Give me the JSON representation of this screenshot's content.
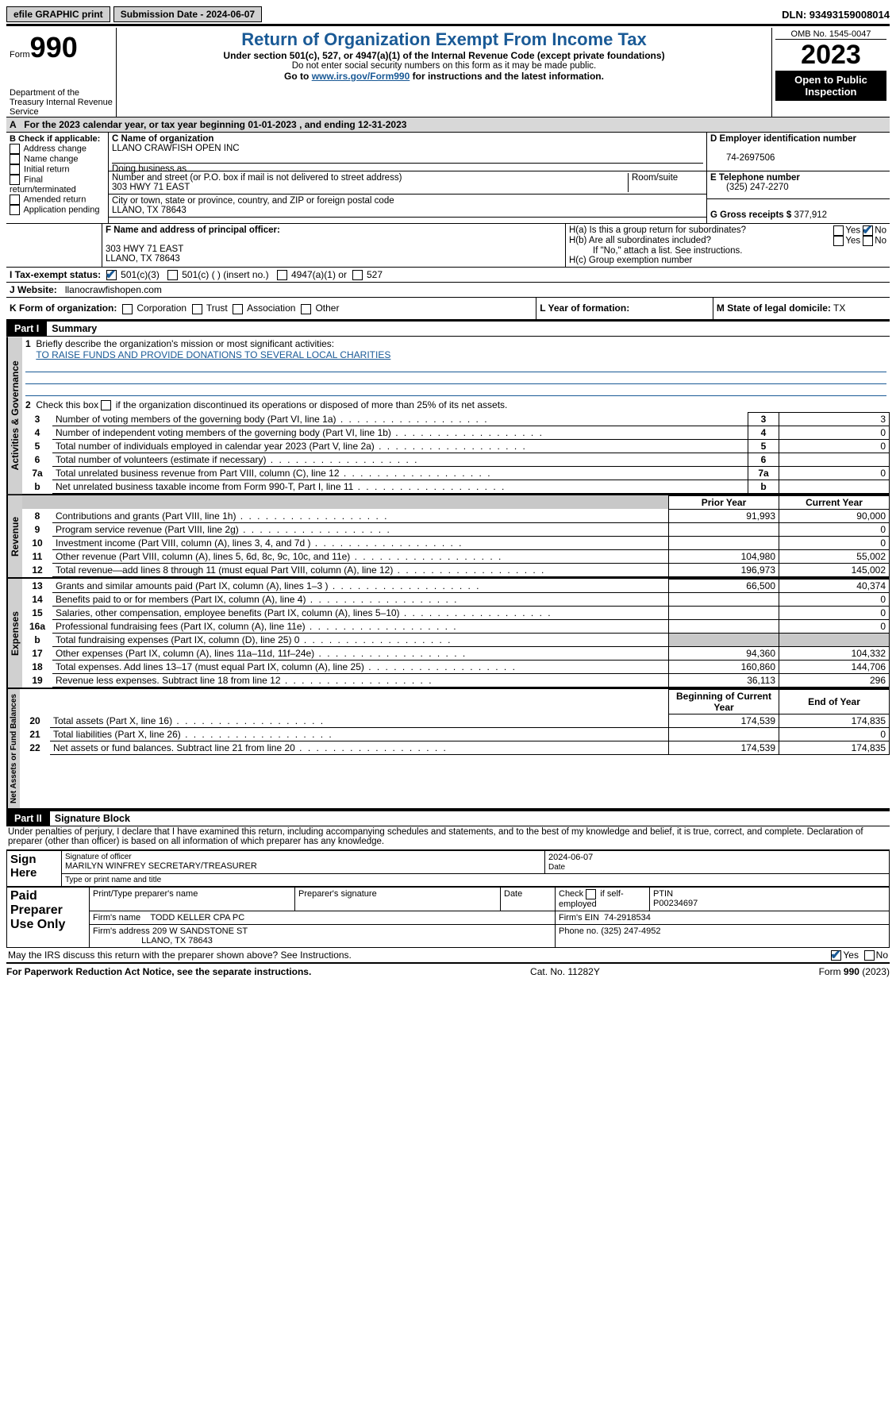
{
  "topbar": {
    "efile": "efile GRAPHIC print",
    "submission_label": "Submission Date - 2024-06-07",
    "dln": "DLN: 93493159008014"
  },
  "header": {
    "form_word": "Form",
    "form_no": "990",
    "dept": "Department of the Treasury\nInternal Revenue Service",
    "title": "Return of Organization Exempt From Income Tax",
    "sub": "Under section 501(c), 527, or 4947(a)(1) of the Internal Revenue Code (except private foundations)",
    "note1": "Do not enter social security numbers on this form as it may be made public.",
    "note2": "Go to ",
    "link": "www.irs.gov/Form990",
    "note3": " for instructions and the latest information.",
    "omb": "OMB No. 1545-0047",
    "year": "2023",
    "inspect": "Open to Public Inspection"
  },
  "period": "For the 2023 calendar year, or tax year beginning 01-01-2023   , and ending 12-31-2023",
  "boxB": {
    "label": "B Check if applicable:",
    "items": [
      "Address change",
      "Name change",
      "Initial return",
      "Final return/terminated",
      "Amended return",
      "Application pending"
    ]
  },
  "boxC": {
    "name_lbl": "C Name of organization",
    "name": "LLANO CRAWFISH OPEN INC",
    "dba_lbl": "Doing business as",
    "street_lbl": "Number and street (or P.O. box if mail is not delivered to street address)",
    "room_lbl": "Room/suite",
    "street": "303 HWY 71 EAST",
    "city_lbl": "City or town, state or province, country, and ZIP or foreign postal code",
    "city": "LLANO, TX  78643"
  },
  "boxD": {
    "lbl": "D Employer identification number",
    "val": "74-2697506"
  },
  "boxE": {
    "lbl": "E Telephone number",
    "val": "(325) 247-2270"
  },
  "boxG": {
    "lbl": "G Gross receipts $",
    "val": "377,912"
  },
  "boxF": {
    "lbl": "F  Name and address of principal officer:",
    "l1": "303 HWY 71 EAST",
    "l2": "LLANO, TX  78643"
  },
  "boxH": {
    "a": "H(a)  Is this a group return for subordinates?",
    "b": "H(b)  Are all subordinates included?",
    "note": "If \"No,\" attach a list. See instructions.",
    "c": "H(c)  Group exemption number"
  },
  "rowI": {
    "lbl": "I   Tax-exempt status:",
    "o1": "501(c)(3)",
    "o2": "501(c) (  ) (insert no.)",
    "o3": "4947(a)(1) or",
    "o4": "527"
  },
  "rowJ": {
    "lbl": "J   Website:",
    "val": "llanocrawfishopen.com"
  },
  "rowK": {
    "lbl": "K Form of organization:",
    "opts": [
      "Corporation",
      "Trust",
      "Association",
      "Other"
    ]
  },
  "rowL": {
    "lbl": "L Year of formation:"
  },
  "rowM": {
    "lbl": "M State of legal domicile:",
    "val": "TX"
  },
  "yes": "Yes",
  "no": "No",
  "part1": {
    "hdr": "Part I",
    "title": "Summary",
    "l1": "Briefly describe the organization's mission or most significant activities:",
    "mission": "TO RAISE FUNDS AND PROVIDE DONATIONS TO SEVERAL LOCAL CHARITIES",
    "l2": "Check this box          if the organization discontinued its operations or disposed of more than 25% of its net assets.",
    "rows_gov": [
      {
        "n": "3",
        "t": "Number of voting members of the governing body (Part VI, line 1a)",
        "v": "3"
      },
      {
        "n": "4",
        "t": "Number of independent voting members of the governing body (Part VI, line 1b)",
        "v": "0"
      },
      {
        "n": "5",
        "t": "Total number of individuals employed in calendar year 2023 (Part V, line 2a)",
        "v": "0"
      },
      {
        "n": "6",
        "t": "Total number of volunteers (estimate if necessary)",
        "v": ""
      },
      {
        "n": "7a",
        "t": "Total unrelated business revenue from Part VIII, column (C), line 12",
        "v": "0"
      },
      {
        "n": "b",
        "t": "Net unrelated business taxable income from Form 990-T, Part I, line 11",
        "v": ""
      }
    ],
    "col_prior": "Prior Year",
    "col_curr": "Current Year",
    "rows_rev": [
      {
        "n": "8",
        "t": "Contributions and grants (Part VIII, line 1h)",
        "p": "91,993",
        "c": "90,000"
      },
      {
        "n": "9",
        "t": "Program service revenue (Part VIII, line 2g)",
        "p": "",
        "c": "0"
      },
      {
        "n": "10",
        "t": "Investment income (Part VIII, column (A), lines 3, 4, and 7d )",
        "p": "",
        "c": "0"
      },
      {
        "n": "11",
        "t": "Other revenue (Part VIII, column (A), lines 5, 6d, 8c, 9c, 10c, and 11e)",
        "p": "104,980",
        "c": "55,002"
      },
      {
        "n": "12",
        "t": "Total revenue—add lines 8 through 11 (must equal Part VIII, column (A), line 12)",
        "p": "196,973",
        "c": "145,002"
      }
    ],
    "rows_exp": [
      {
        "n": "13",
        "t": "Grants and similar amounts paid (Part IX, column (A), lines 1–3 )",
        "p": "66,500",
        "c": "40,374"
      },
      {
        "n": "14",
        "t": "Benefits paid to or for members (Part IX, column (A), line 4)",
        "p": "",
        "c": "0"
      },
      {
        "n": "15",
        "t": "Salaries, other compensation, employee benefits (Part IX, column (A), lines 5–10)",
        "p": "",
        "c": "0"
      },
      {
        "n": "16a",
        "t": "Professional fundraising fees (Part IX, column (A), line 11e)",
        "p": "",
        "c": "0"
      },
      {
        "n": "b",
        "t": "Total fundraising expenses (Part IX, column (D), line 25) 0",
        "p": "shade",
        "c": "shade"
      },
      {
        "n": "17",
        "t": "Other expenses (Part IX, column (A), lines 11a–11d, 11f–24e)",
        "p": "94,360",
        "c": "104,332"
      },
      {
        "n": "18",
        "t": "Total expenses. Add lines 13–17 (must equal Part IX, column (A), line 25)",
        "p": "160,860",
        "c": "144,706"
      },
      {
        "n": "19",
        "t": "Revenue less expenses. Subtract line 18 from line 12",
        "p": "36,113",
        "c": "296"
      }
    ],
    "col_beg": "Beginning of Current Year",
    "col_end": "End of Year",
    "rows_net": [
      {
        "n": "20",
        "t": "Total assets (Part X, line 16)",
        "p": "174,539",
        "c": "174,835"
      },
      {
        "n": "21",
        "t": "Total liabilities (Part X, line 26)",
        "p": "",
        "c": "0"
      },
      {
        "n": "22",
        "t": "Net assets or fund balances. Subtract line 21 from line 20",
        "p": "174,539",
        "c": "174,835"
      }
    ]
  },
  "tabs": {
    "gov": "Activities & Governance",
    "rev": "Revenue",
    "exp": "Expenses",
    "net": "Net Assets or Fund Balances"
  },
  "part2": {
    "hdr": "Part II",
    "title": "Signature Block",
    "decl": "Under penalties of perjury, I declare that I have examined this return, including accompanying schedules and statements, and to the best of my knowledge and belief, it is true, correct, and complete. Declaration of preparer (other than officer) is based on all information of which preparer has any knowledge."
  },
  "sign": {
    "here": "Sign Here",
    "sig_lbl": "Signature of officer",
    "date_lbl": "Date",
    "date": "2024-06-07",
    "name": "MARILYN WINFREY SECRETARY/TREASURER",
    "name_lbl": "Type or print name and title"
  },
  "preparer": {
    "here": "Paid Preparer Use Only",
    "col1": "Print/Type preparer's name",
    "col2": "Preparer's signature",
    "col3": "Date",
    "col4": "Check        if self-employed",
    "col5": "PTIN",
    "ptin": "P00234697",
    "firm_lbl": "Firm's name",
    "firm": "TODD KELLER CPA PC",
    "ein_lbl": "Firm's EIN",
    "ein": "74-2918534",
    "addr_lbl": "Firm's address",
    "addr1": "209 W SANDSTONE ST",
    "addr2": "LLANO, TX  78643",
    "phone_lbl": "Phone no.",
    "phone": "(325) 247-4952"
  },
  "discuss": "May the IRS discuss this return with the preparer shown above? See Instructions.",
  "footer": {
    "l": "For Paperwork Reduction Act Notice, see the separate instructions.",
    "m": "Cat. No. 11282Y",
    "r": "Form 990 (2023)"
  }
}
